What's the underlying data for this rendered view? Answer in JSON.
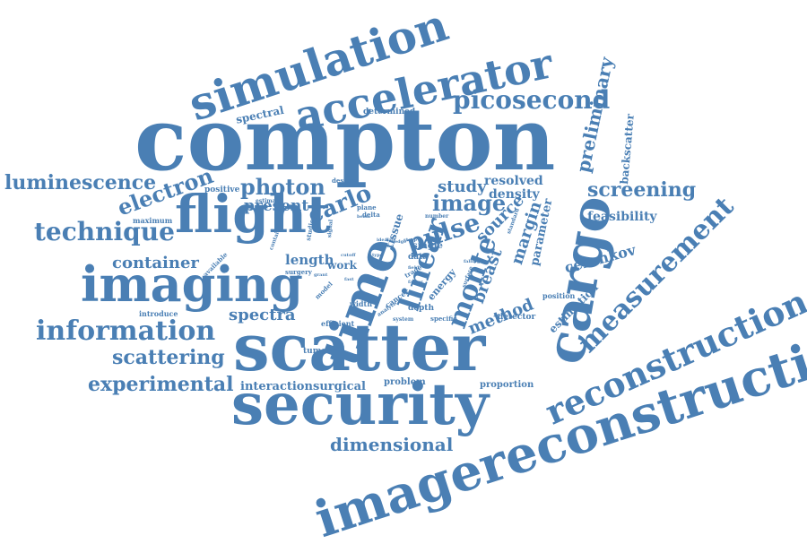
{
  "accent_color": "#4a7fb4",
  "words": [
    "compton",
    "scatter",
    "security",
    "imagereconstruction",
    "simulation",
    "accelerator",
    "flight",
    "imaging",
    "time",
    "cargo",
    "reconstruction",
    "measurement",
    "information",
    "monte",
    "linear",
    "pulse",
    "technique",
    "picosecond",
    "luminescence",
    "electron",
    "photon",
    "carlo",
    "image",
    "screening",
    "preliminary",
    "scattering",
    "experimental",
    "dimensional",
    "container",
    "spectra",
    "length",
    "present",
    "study",
    "resolved",
    "density",
    "source",
    "breast",
    "margin",
    "parameter",
    "feasibility",
    "cerenkov",
    "method",
    "estimation",
    "backscatter",
    "spectral",
    "determined",
    "positive",
    "maximum",
    "available",
    "interaction",
    "surgical",
    "tumour",
    "problem",
    "proportion",
    "position",
    "detector",
    "energy",
    "work",
    "tissue",
    "design",
    "estimate",
    "plane",
    "delta",
    "number",
    "single",
    "data",
    "trade",
    "depth",
    "specific",
    "cancer",
    "analytic",
    "system",
    "efficient",
    "width",
    "introduce",
    "model",
    "surgery",
    "contain",
    "studies",
    "signal",
    "beam",
    "ideal",
    "edge",
    "cutoff",
    "field",
    "grant",
    "thick",
    "fast",
    "standard",
    "surface",
    "falling",
    "type",
    "half",
    "steep",
    "line",
    "factor"
  ]
}
